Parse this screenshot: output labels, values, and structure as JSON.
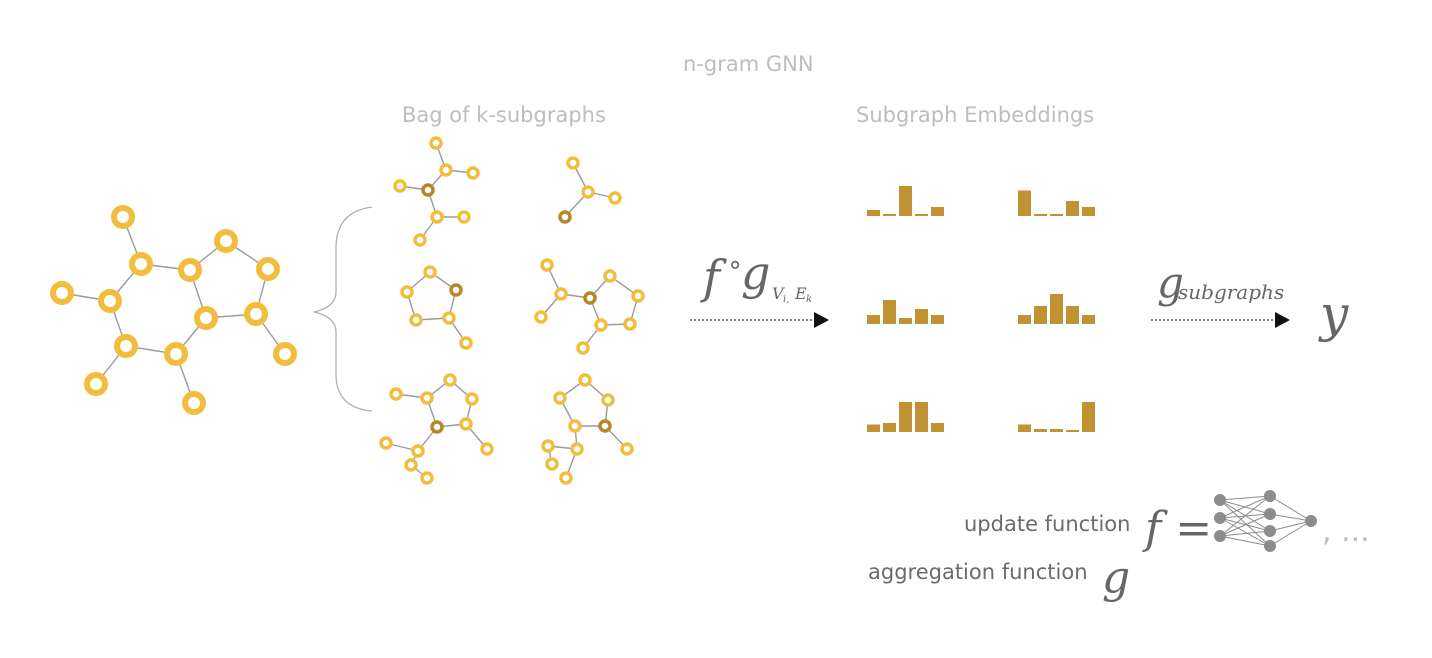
{
  "title": "n-gram GNN",
  "bag_label": "Bag of k-subgraphs",
  "emb_label": "Subgraph Embeddings",
  "compose_f": "f",
  "compose_g": "g",
  "compose_sub": "V",
  "compose_sub_i": "i,",
  "compose_sub_e": "E",
  "compose_sub_k": "k",
  "agg_g": "g",
  "agg_sub": "subgraphs",
  "output": "y",
  "update_label": "update function",
  "update_math": "f =",
  "ellipsis": ", ...",
  "aggregation_label": "aggregation function",
  "aggregation_math": "g",
  "colors": {
    "node": "#f2bd3c",
    "node_dark": "#b5862a",
    "edge": "#9a9a9a",
    "bar": "#c09231",
    "nn": "#8c8c8c",
    "text": "#bdbdbd"
  },
  "embeddings": [
    [
      0.2,
      0.05,
      1.0,
      0.05,
      0.3
    ],
    [
      0.85,
      0.05,
      0.05,
      0.5,
      0.3
    ],
    [
      0.3,
      0.8,
      0.2,
      0.5,
      0.3
    ],
    [
      0.3,
      0.6,
      1.0,
      0.6,
      0.3
    ],
    [
      0.25,
      0.3,
      1.0,
      1.0,
      0.3
    ],
    [
      0.25,
      0.1,
      0.1,
      0.05,
      1.0
    ]
  ]
}
